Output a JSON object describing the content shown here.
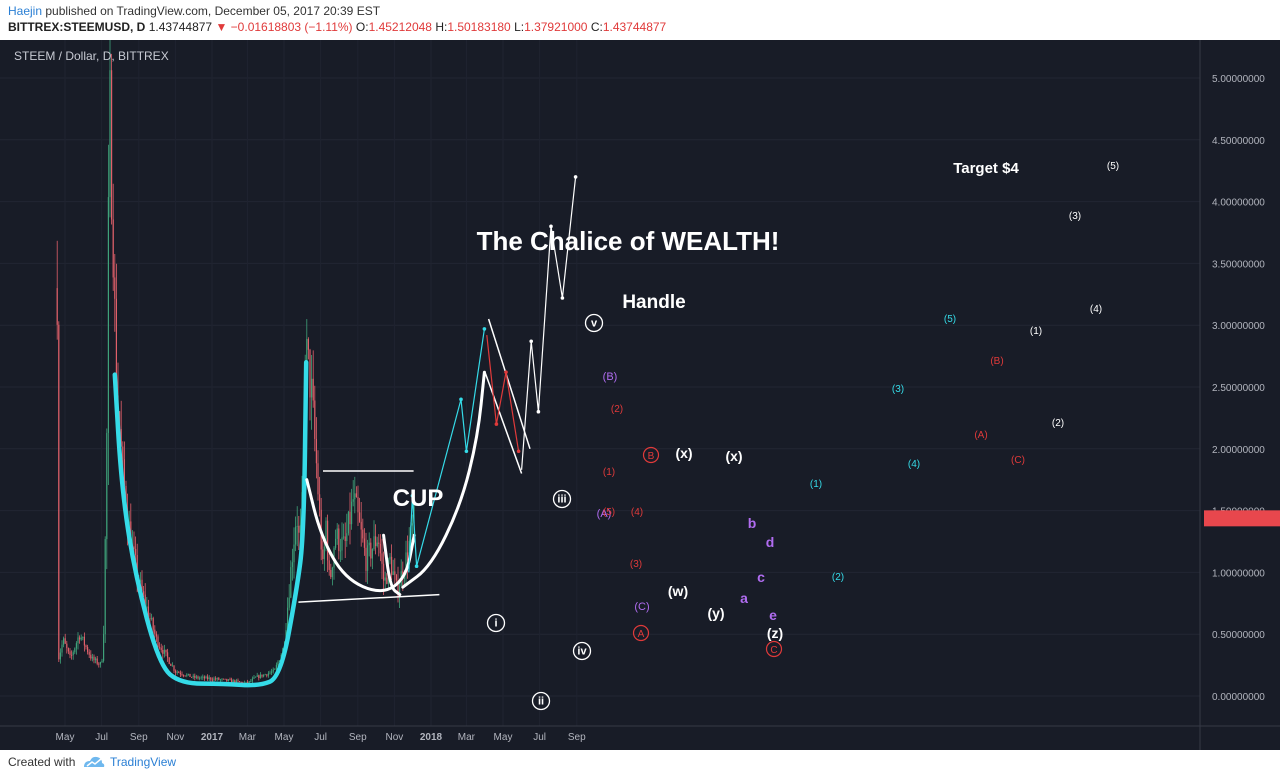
{
  "header": {
    "author": "Haejin",
    "published": "published on TradingView.com, December 05, 2017 20:39 EST",
    "symbol": "BITTREX:STEEMUSD, D",
    "last": "1.43744877",
    "change": "−0.01618803 (−1.11%)",
    "o_label": "O:",
    "o_value": "1.45212048",
    "h_label": "H:",
    "h_value": "1.50183180",
    "l_label": "L:",
    "l_value": "1.37921000",
    "c_label": "C:",
    "c_value": "1.43744877"
  },
  "chart_title": "STEEM / Dollar, D, BITTREX",
  "price_tag": "1.43744877",
  "colors": {
    "background": "#181c27",
    "candle_up": "#3fa27a",
    "candle_down": "#e0606a",
    "cyan": "#35dbe8",
    "white": "#ffffff",
    "purple": "#b06cf0",
    "red_label": "#e03a3a",
    "price_tag_bg": "#e8474d"
  },
  "footer": {
    "created_with": "Created with",
    "brand": "TradingView"
  },
  "chart_data": {
    "type": "candlestick",
    "symbol": "STEEM / Dollar",
    "timeframe": "D",
    "exchange": "BITTREX",
    "ylim": [
      -0.25,
      5.25
    ],
    "y_ticks": [
      "5.00000000",
      "4.50000000",
      "4.00000000",
      "3.50000000",
      "3.00000000",
      "2.50000000",
      "2.00000000",
      "1.50000000",
      "1.00000000",
      "0.50000000",
      "0.00000000"
    ],
    "x_ticks": [
      "May",
      "Jul",
      "Sep",
      "Nov",
      "2017",
      "Mar",
      "May",
      "Jul",
      "Sep",
      "Nov",
      "2018",
      "Mar",
      "May",
      "Jul",
      "Sep"
    ],
    "price_path": [
      [
        "2016-04-18",
        3.3
      ],
      [
        "2016-04-20",
        0.3
      ],
      [
        "2016-04-28",
        0.45
      ],
      [
        "2016-05-10",
        0.3
      ],
      [
        "2016-05-25",
        0.5
      ],
      [
        "2016-06-15",
        0.3
      ],
      [
        "2016-07-01",
        0.25
      ],
      [
        "2016-07-05",
        0.6
      ],
      [
        "2016-07-10",
        2.2
      ],
      [
        "2016-07-14",
        4.9
      ],
      [
        "2016-07-20",
        3.8
      ],
      [
        "2016-07-25",
        2.6
      ],
      [
        "2016-08-05",
        1.8
      ],
      [
        "2016-08-20",
        1.2
      ],
      [
        "2016-09-05",
        0.85
      ],
      [
        "2016-10-01",
        0.45
      ],
      [
        "2016-11-01",
        0.2
      ],
      [
        "2016-12-01",
        0.15
      ],
      [
        "2017-01-01",
        0.14
      ],
      [
        "2017-02-01",
        0.12
      ],
      [
        "2017-03-01",
        0.1
      ],
      [
        "2017-03-15",
        0.15
      ],
      [
        "2017-04-15",
        0.2
      ],
      [
        "2017-05-01",
        0.4
      ],
      [
        "2017-05-12",
        1.0
      ],
      [
        "2017-05-22",
        1.5
      ],
      [
        "2017-05-27",
        1.2
      ],
      [
        "2017-06-01",
        1.6
      ],
      [
        "2017-06-06",
        2.8
      ],
      [
        "2017-06-15",
        2.5
      ],
      [
        "2017-06-25",
        1.8
      ],
      [
        "2017-07-05",
        1.0
      ],
      [
        "2017-07-10",
        1.4
      ],
      [
        "2017-07-16",
        0.9
      ],
      [
        "2017-07-25",
        1.3
      ],
      [
        "2017-08-10",
        1.2
      ],
      [
        "2017-08-25",
        1.6
      ],
      [
        "2017-09-15",
        1.1
      ],
      [
        "2017-10-05",
        1.3
      ],
      [
        "2017-10-15",
        0.9
      ],
      [
        "2017-10-25",
        1.1
      ],
      [
        "2017-11-05",
        0.85
      ],
      [
        "2017-11-20",
        1.1
      ],
      [
        "2017-12-05",
        1.44
      ]
    ],
    "projections": [
      {
        "name": "cyan impulse",
        "color": "cyan",
        "points": [
          [
            "2017-11-25",
            1.0
          ],
          [
            "2017-12-01",
            1.62
          ],
          [
            "2017-12-08",
            1.05
          ],
          [
            "2018-02-20",
            2.4
          ],
          [
            "2018-03-01",
            1.98
          ],
          [
            "2018-03-31",
            2.97
          ]
        ]
      },
      {
        "name": "red correction",
        "color": "red",
        "points": [
          [
            "2018-04-04",
            2.92
          ],
          [
            "2018-04-20",
            2.2
          ],
          [
            "2018-05-06",
            2.62
          ],
          [
            "2018-05-27",
            1.98
          ]
        ]
      },
      {
        "name": "white impulse",
        "color": "white",
        "points": [
          [
            "2018-06-01",
            1.83
          ],
          [
            "2018-06-17",
            2.87
          ],
          [
            "2018-06-29",
            2.3
          ],
          [
            "2018-07-20",
            3.8
          ],
          [
            "2018-08-08",
            3.22
          ],
          [
            "2018-08-30",
            4.2
          ]
        ]
      }
    ],
    "annotations": {
      "title": "The Chalice of WEALTH!",
      "cup": "CUP",
      "handle": "Handle",
      "target": "Target $4",
      "waves_roman": [
        "i",
        "ii",
        "iii",
        "iv",
        "v"
      ],
      "waves_purple": [
        "(A)",
        "(B)",
        "(C)",
        "a",
        "b",
        "c",
        "d",
        "e"
      ],
      "waves_red_circled": [
        "A",
        "B",
        "C"
      ],
      "waves_red": [
        "(1)",
        "(2)",
        "(3)",
        "(4)",
        "(5)"
      ],
      "waves_white": [
        "(w)",
        "(x)",
        "(x)",
        "(y)",
        "(z)"
      ],
      "projection_cyan": [
        "(1)",
        "(2)",
        "(3)",
        "(4)",
        "(5)"
      ],
      "projection_red": [
        "(A)",
        "(B)",
        "(C)"
      ],
      "projection_white": [
        "(1)",
        "(2)",
        "(3)",
        "(4)",
        "(5)"
      ]
    }
  }
}
